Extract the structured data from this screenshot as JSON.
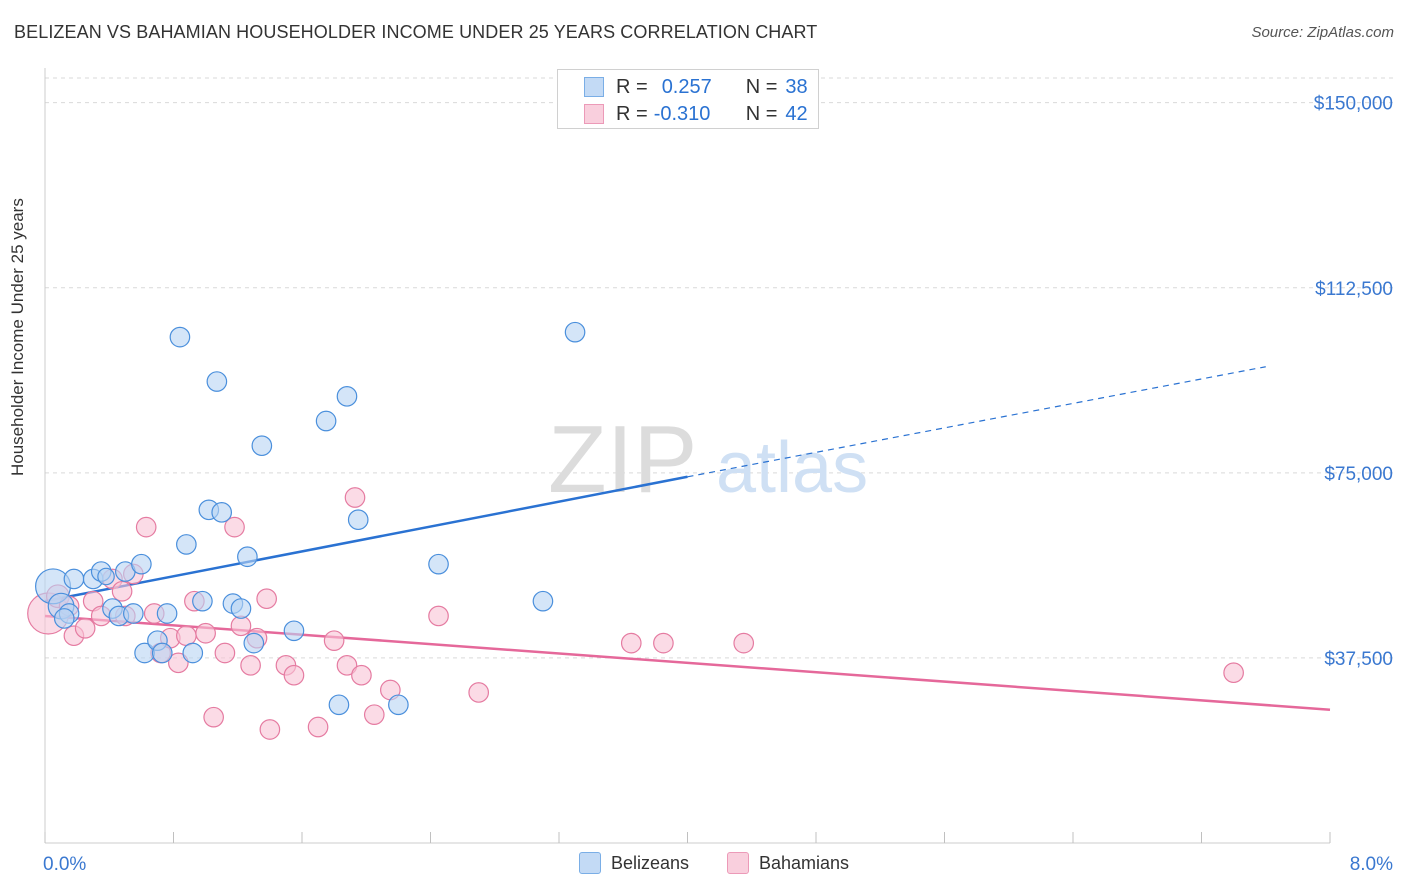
{
  "title": "BELIZEAN VS BAHAMIAN HOUSEHOLDER INCOME UNDER 25 YEARS CORRELATION CHART",
  "source": "Source: ZipAtlas.com",
  "watermark": {
    "zip": "ZIP",
    "atlas": "atlas"
  },
  "colors": {
    "blue": "#4a8fdc",
    "blue_fill": "#b8d3f3",
    "blue_line": "#2a72d2",
    "pink": "#e57ba1",
    "pink_fill": "#f8c3d5",
    "pink_line": "#e5689a",
    "axis_text": "#3a78d0",
    "grid": "#d9d9d9"
  },
  "legend_top": [
    {
      "r_label": "R =",
      "r_value": "0.257",
      "n_label": "N =",
      "n_value": "38"
    },
    {
      "r_label": "R =",
      "r_value": "-0.310",
      "n_label": "N =",
      "n_value": "42"
    }
  ],
  "chart_data": {
    "type": "scatter",
    "title": "BELIZEAN VS BAHAMIAN HOUSEHOLDER INCOME UNDER 25 YEARS CORRELATION CHART",
    "xlabel": "",
    "ylabel": "Householder Income Under 25 years",
    "xlim": [
      0,
      8
    ],
    "ylim": [
      0,
      155000
    ],
    "x_tick_labels": [
      "0.0%",
      "8.0%"
    ],
    "y_ticks": [
      37500,
      75000,
      112500,
      150000
    ],
    "y_tick_labels": [
      "$37,500",
      "$75,000",
      "$112,500",
      "$150,000"
    ],
    "grid": "horizontal dashed",
    "legend_placement": "bottom-center",
    "series": [
      {
        "name": "Belizeans",
        "color": "#4a8fdc",
        "trend": {
          "x0": 0,
          "y0": 49000,
          "x1": 4.0,
          "y1": 74200,
          "dashed_to_x": 7.6,
          "dashed_to_y": 96500
        },
        "points": [
          [
            0.05,
            52000,
            22
          ],
          [
            0.1,
            48000,
            16
          ],
          [
            0.15,
            46500,
            12
          ],
          [
            0.18,
            53500,
            12
          ],
          [
            0.3,
            53500,
            12
          ],
          [
            0.35,
            55000,
            12
          ],
          [
            0.38,
            54000,
            10
          ],
          [
            0.42,
            47500,
            12
          ],
          [
            0.46,
            46000,
            12
          ],
          [
            0.5,
            55000,
            12
          ],
          [
            0.55,
            46500,
            12
          ],
          [
            0.6,
            56500,
            12
          ],
          [
            0.62,
            38500,
            12
          ],
          [
            0.7,
            41000,
            12
          ],
          [
            0.73,
            38500,
            12
          ],
          [
            0.76,
            46500,
            12
          ],
          [
            0.84,
            102500,
            12
          ],
          [
            0.88,
            60500,
            12
          ],
          [
            0.92,
            38500,
            12
          ],
          [
            0.98,
            49000,
            12
          ],
          [
            1.02,
            67500,
            12
          ],
          [
            1.07,
            93500,
            12
          ],
          [
            1.1,
            67000,
            12
          ],
          [
            1.17,
            48500,
            12
          ],
          [
            1.22,
            47500,
            12
          ],
          [
            1.26,
            58000,
            12
          ],
          [
            1.3,
            40500,
            12
          ],
          [
            1.35,
            80500,
            12
          ],
          [
            1.55,
            43000,
            12
          ],
          [
            1.75,
            85500,
            12
          ],
          [
            1.88,
            90500,
            12
          ],
          [
            1.83,
            28000,
            12
          ],
          [
            1.95,
            65500,
            12
          ],
          [
            2.2,
            28000,
            12
          ],
          [
            2.45,
            56500,
            12
          ],
          [
            3.1,
            49000,
            12
          ],
          [
            3.3,
            103500,
            12
          ],
          [
            0.12,
            45500,
            12
          ]
        ]
      },
      {
        "name": "Bahamians",
        "color": "#e57ba1",
        "trend": {
          "x0": 0,
          "y0": 46000,
          "x1": 8.0,
          "y1": 27000
        },
        "points": [
          [
            0.02,
            46500,
            26
          ],
          [
            0.08,
            50000,
            14
          ],
          [
            0.18,
            42000,
            12
          ],
          [
            0.25,
            43500,
            12
          ],
          [
            0.3,
            49000,
            12
          ],
          [
            0.35,
            46000,
            12
          ],
          [
            0.42,
            53500,
            12
          ],
          [
            0.48,
            51000,
            12
          ],
          [
            0.55,
            54500,
            12
          ],
          [
            0.63,
            64000,
            12
          ],
          [
            0.68,
            46500,
            12
          ],
          [
            0.72,
            38500,
            12
          ],
          [
            0.78,
            41500,
            12
          ],
          [
            0.83,
            36500,
            12
          ],
          [
            0.88,
            42000,
            12
          ],
          [
            0.93,
            49000,
            12
          ],
          [
            1.0,
            42500,
            12
          ],
          [
            1.05,
            25500,
            12
          ],
          [
            1.12,
            38500,
            12
          ],
          [
            1.18,
            64000,
            12
          ],
          [
            1.22,
            44000,
            12
          ],
          [
            1.28,
            36000,
            12
          ],
          [
            1.32,
            41500,
            12
          ],
          [
            1.38,
            49500,
            12
          ],
          [
            1.4,
            23000,
            12
          ],
          [
            1.5,
            36000,
            12
          ],
          [
            1.55,
            34000,
            12
          ],
          [
            1.7,
            23500,
            12
          ],
          [
            1.8,
            41000,
            12
          ],
          [
            1.88,
            36000,
            12
          ],
          [
            1.93,
            70000,
            12
          ],
          [
            1.97,
            34000,
            12
          ],
          [
            2.05,
            26000,
            12
          ],
          [
            2.15,
            31000,
            12
          ],
          [
            2.45,
            46000,
            12
          ],
          [
            2.7,
            30500,
            12
          ],
          [
            3.65,
            40500,
            12
          ],
          [
            3.85,
            40500,
            12
          ],
          [
            4.35,
            40500,
            12
          ],
          [
            7.4,
            34500,
            12
          ],
          [
            0.5,
            46000,
            12
          ],
          [
            0.15,
            48000,
            12
          ]
        ]
      }
    ]
  },
  "legend_bottom": {
    "items": [
      {
        "label": "Belizeans"
      },
      {
        "label": "Bahamians"
      }
    ]
  }
}
